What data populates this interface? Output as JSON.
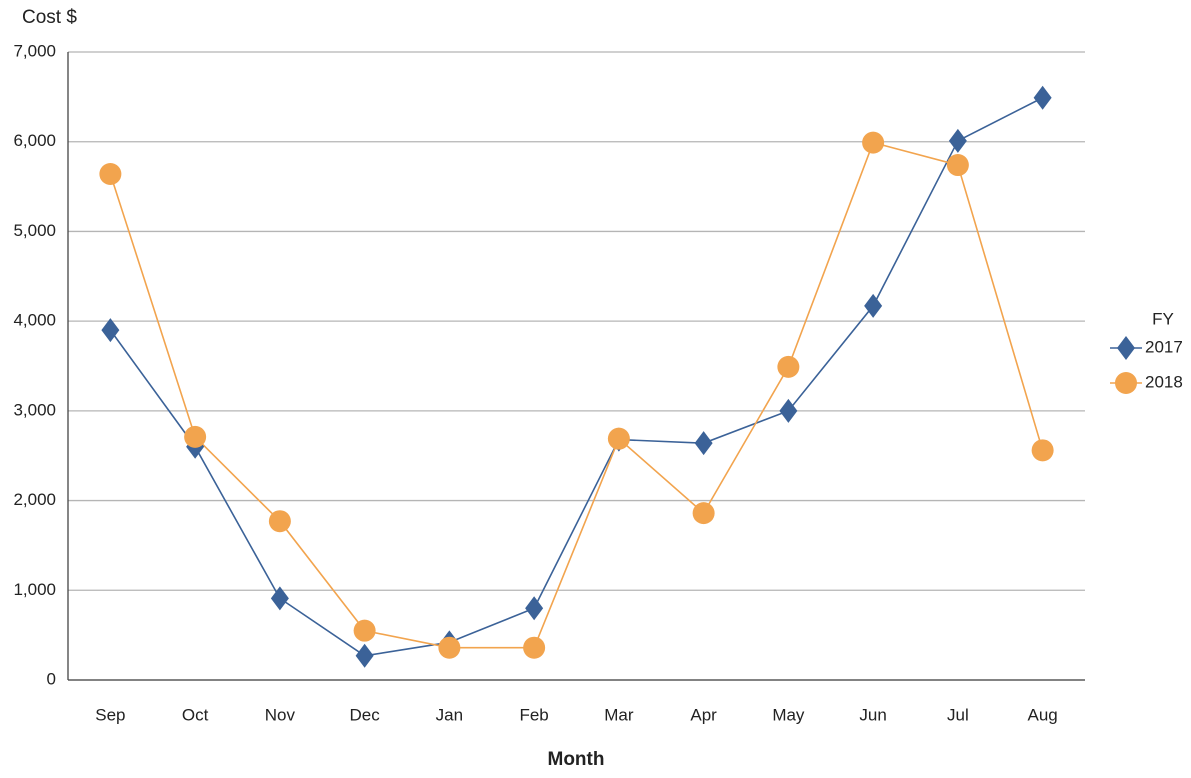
{
  "chart_data": {
    "type": "line",
    "y_label": "Cost $",
    "x_label": "Month",
    "legend_title": "FY",
    "categories": [
      "Sep",
      "Oct",
      "Nov",
      "Dec",
      "Jan",
      "Feb",
      "Mar",
      "Apr",
      "May",
      "Jun",
      "Jul",
      "Aug"
    ],
    "series": [
      {
        "name": "2017",
        "color": "#3b6298",
        "marker": "diamond",
        "values": [
          3900,
          2600,
          910,
          270,
          420,
          800,
          2680,
          2640,
          3000,
          4170,
          6010,
          6490
        ]
      },
      {
        "name": "2018",
        "color": "#f2a44e",
        "marker": "circle",
        "values": [
          5640,
          2710,
          1770,
          550,
          360,
          360,
          2690,
          1860,
          3490,
          5990,
          5740,
          2560
        ]
      }
    ],
    "ylim": [
      0,
      7000
    ],
    "yticks": [
      0,
      {
        "value": 1000,
        "label": "1,000"
      },
      {
        "value": 2000,
        "label": "2,000"
      },
      {
        "value": 3000,
        "label": "3,000"
      },
      {
        "value": 4000,
        "label": "4,000"
      },
      {
        "value": 5000,
        "label": "5,000"
      },
      {
        "value": 6000,
        "label": "6,000"
      },
      {
        "value": 7000,
        "label": "7,000"
      }
    ],
    "grid": true,
    "legend": "right"
  }
}
